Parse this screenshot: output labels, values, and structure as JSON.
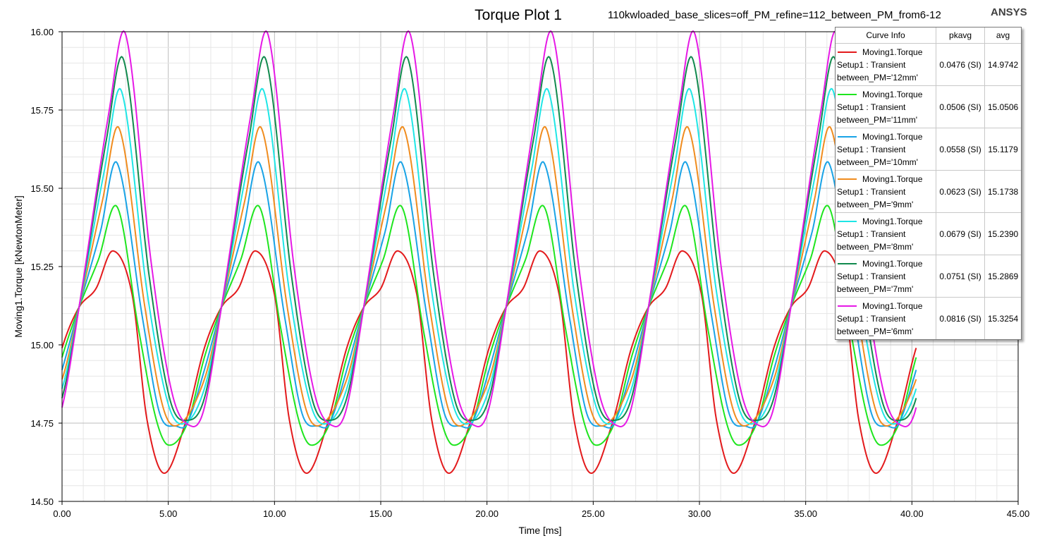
{
  "title": "Torque Plot 1",
  "subtitle": "110kwloaded_base_slices=off_PM_refine=112_between_PM_from6-12",
  "brand": "ANSYS",
  "legend": {
    "headers": {
      "curve_info": "Curve Info",
      "pkavg": "pkavg",
      "avg": "avg"
    },
    "entries": [
      {
        "line1": "Moving1.Torque",
        "line2": "Setup1 : Transient",
        "line3": "between_PM='12mm'",
        "pkavg": "0.0476 (SI)",
        "avg": "14.9742"
      },
      {
        "line1": "Moving1.Torque",
        "line2": "Setup1 : Transient",
        "line3": "between_PM='11mm'",
        "pkavg": "0.0506 (SI)",
        "avg": "15.0506"
      },
      {
        "line1": "Moving1.Torque",
        "line2": "Setup1 : Transient",
        "line3": "between_PM='10mm'",
        "pkavg": "0.0558 (SI)",
        "avg": "15.1179"
      },
      {
        "line1": "Moving1.Torque",
        "line2": "Setup1 : Transient",
        "line3": "between_PM='9mm'",
        "pkavg": "0.0623 (SI)",
        "avg": "15.1738"
      },
      {
        "line1": "Moving1.Torque",
        "line2": "Setup1 : Transient",
        "line3": "between_PM='8mm'",
        "pkavg": "0.0679 (SI)",
        "avg": "15.2390"
      },
      {
        "line1": "Moving1.Torque",
        "line2": "Setup1 : Transient",
        "line3": "between_PM='7mm'",
        "pkavg": "0.0751 (SI)",
        "avg": "15.2869"
      },
      {
        "line1": "Moving1.Torque",
        "line2": "Setup1 : Transient",
        "line3": "between_PM='6mm'",
        "pkavg": "0.0816 (SI)",
        "avg": "15.3254"
      }
    ]
  },
  "chart_data": {
    "type": "line",
    "title": "Torque Plot 1",
    "xlabel": "Time [ms]",
    "ylabel": "Moving1.Torque [kNewtonMeter]",
    "xlim": [
      0,
      45
    ],
    "ylim": [
      14.5,
      16.0
    ],
    "x_ticks": [
      "0.00",
      "5.00",
      "10.00",
      "15.00",
      "20.00",
      "25.00",
      "30.00",
      "35.00",
      "40.00",
      "45.00"
    ],
    "y_ticks": [
      "14.50",
      "14.75",
      "15.00",
      "15.25",
      "15.50",
      "15.75",
      "16.00"
    ],
    "grid": true,
    "legend_position": "top-right",
    "period_ms": 6.7,
    "x_end": 40.2,
    "series": [
      {
        "name": "between_PM='12mm'",
        "color": "#e31a1c",
        "key_points": [
          [
            0,
            14.99
          ],
          [
            0.8,
            15.12
          ],
          [
            1.6,
            15.18
          ],
          [
            2.4,
            15.3
          ],
          [
            3.3,
            15.16
          ],
          [
            4.0,
            14.76
          ],
          [
            4.8,
            14.59
          ],
          [
            5.8,
            14.75
          ],
          [
            6.7,
            14.99
          ]
        ]
      },
      {
        "name": "between_PM='11mm'",
        "color": "#1ee51e",
        "key_points": [
          [
            0,
            14.96
          ],
          [
            0.8,
            15.12
          ],
          [
            1.7,
            15.27
          ],
          [
            2.6,
            15.44
          ],
          [
            3.6,
            15.05
          ],
          [
            4.4,
            14.77
          ],
          [
            5.0,
            14.68
          ],
          [
            5.9,
            14.75
          ],
          [
            6.7,
            14.96
          ]
        ]
      },
      {
        "name": "between_PM='10mm'",
        "color": "#19a3e6",
        "key_points": [
          [
            0,
            14.92
          ],
          [
            0.8,
            15.12
          ],
          [
            1.8,
            15.36
          ],
          [
            2.6,
            15.58
          ],
          [
            3.8,
            15.08
          ],
          [
            4.6,
            14.78
          ],
          [
            5.4,
            14.74
          ],
          [
            5.9,
            14.75
          ],
          [
            6.7,
            14.92
          ]
        ]
      },
      {
        "name": "between_PM='9mm'",
        "color": "#f08c1e",
        "key_points": [
          [
            0,
            14.89
          ],
          [
            0.8,
            15.12
          ],
          [
            1.9,
            15.46
          ],
          [
            2.7,
            15.69
          ],
          [
            3.9,
            15.12
          ],
          [
            4.8,
            14.79
          ],
          [
            5.6,
            14.75
          ],
          [
            6.7,
            14.89
          ]
        ]
      },
      {
        "name": "between_PM='8mm'",
        "color": "#1ee6e6",
        "key_points": [
          [
            0,
            14.86
          ],
          [
            0.8,
            15.12
          ],
          [
            2.0,
            15.56
          ],
          [
            2.8,
            15.81
          ],
          [
            4.0,
            15.17
          ],
          [
            5.0,
            14.81
          ],
          [
            5.8,
            14.75
          ],
          [
            6.7,
            14.86
          ]
        ]
      },
      {
        "name": "between_PM='7mm'",
        "color": "#118a4e",
        "key_points": [
          [
            0,
            14.83
          ],
          [
            0.8,
            15.12
          ],
          [
            2.1,
            15.66
          ],
          [
            2.9,
            15.91
          ],
          [
            4.1,
            15.22
          ],
          [
            5.1,
            14.82
          ],
          [
            6.0,
            14.76
          ],
          [
            6.7,
            14.83
          ]
        ]
      },
      {
        "name": "between_PM='6mm'",
        "color": "#e619e6",
        "key_points": [
          [
            0,
            14.8
          ],
          [
            0.8,
            15.12
          ],
          [
            2.2,
            15.74
          ],
          [
            3.0,
            15.99
          ],
          [
            4.2,
            15.26
          ],
          [
            5.2,
            14.84
          ],
          [
            6.1,
            14.74
          ],
          [
            6.7,
            14.8
          ]
        ]
      }
    ]
  }
}
